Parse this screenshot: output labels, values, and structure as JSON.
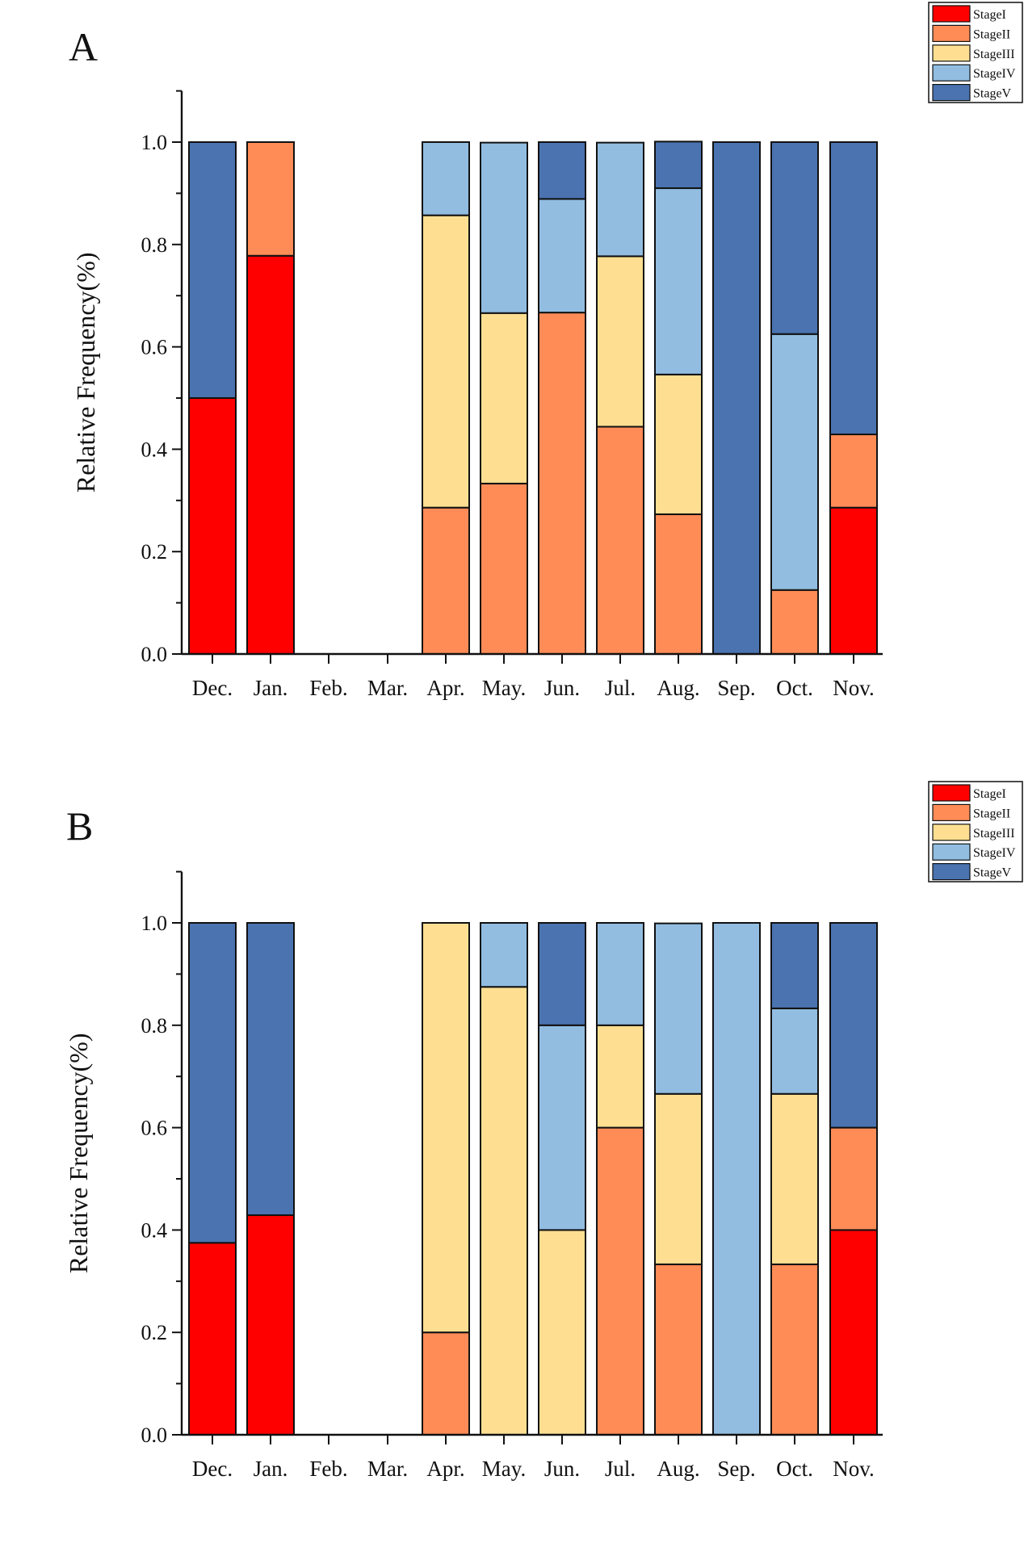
{
  "colors": {
    "StageI": "#FF0000",
    "StageII": "#FF8C57",
    "StageIII": "#FEDF92",
    "StageIV": "#92BDE1",
    "StageV": "#4A73B0"
  },
  "chart_data": [
    {
      "type": "bar",
      "stacked": true,
      "panel_label": "A",
      "ylabel": "Relative Frequency(%)",
      "ylim": [
        0,
        1.1
      ],
      "yticks": [
        "0.0",
        "0.2",
        "0.4",
        "0.6",
        "0.8",
        "1.0"
      ],
      "legend_position": "top-right",
      "categories": [
        "Dec.",
        "Jan.",
        "Feb.",
        "Mar.",
        "Apr.",
        "May.",
        "Jun.",
        "Jul.",
        "Aug.",
        "Sep.",
        "Oct.",
        "Nov."
      ],
      "series": [
        {
          "name": "StageI",
          "values": [
            0.5,
            0.778,
            0,
            0,
            0,
            0,
            0,
            0,
            0,
            0,
            0,
            0.286
          ]
        },
        {
          "name": "StageII",
          "values": [
            0,
            0.222,
            0,
            0,
            0.286,
            0.333,
            0.667,
            0.444,
            0.273,
            0,
            0.125,
            0.143
          ]
        },
        {
          "name": "StageIII",
          "values": [
            0,
            0,
            0,
            0,
            0.571,
            0.333,
            0,
            0.333,
            0.273,
            0,
            0,
            0
          ]
        },
        {
          "name": "StageIV",
          "values": [
            0,
            0,
            0,
            0,
            0.143,
            0.333,
            0.222,
            0.222,
            0.364,
            0,
            0.5,
            0
          ]
        },
        {
          "name": "StageV",
          "values": [
            0.5,
            0,
            0,
            0,
            0,
            0,
            0.111,
            0,
            0.091,
            1.0,
            0.375,
            0.571
          ]
        }
      ]
    },
    {
      "type": "bar",
      "stacked": true,
      "panel_label": "B",
      "ylabel": "Relative Frequency(%)",
      "ylim": [
        0,
        1.1
      ],
      "yticks": [
        "0.0",
        "0.2",
        "0.4",
        "0.6",
        "0.8",
        "1.0"
      ],
      "legend_position": "top-right",
      "categories": [
        "Dec.",
        "Jan.",
        "Feb.",
        "Mar.",
        "Apr.",
        "May.",
        "Jun.",
        "Jul.",
        "Aug.",
        "Sep.",
        "Oct.",
        "Nov."
      ],
      "series": [
        {
          "name": "StageI",
          "values": [
            0.375,
            0.429,
            0,
            0,
            0,
            0,
            0,
            0,
            0,
            0,
            0,
            0.4
          ]
        },
        {
          "name": "StageII",
          "values": [
            0,
            0,
            0,
            0,
            0.2,
            0,
            0,
            0.6,
            0.333,
            0,
            0.333,
            0.2
          ]
        },
        {
          "name": "StageIII",
          "values": [
            0,
            0,
            0,
            0,
            0.8,
            0.875,
            0.4,
            0.2,
            0.333,
            0,
            0.333,
            0
          ]
        },
        {
          "name": "StageIV",
          "values": [
            0,
            0,
            0,
            0,
            0,
            0.125,
            0.4,
            0.2,
            0.333,
            1.0,
            0.167,
            0
          ]
        },
        {
          "name": "StageV",
          "values": [
            0.625,
            0.571,
            0,
            0,
            0,
            0,
            0.2,
            0,
            0,
            0,
            0.167,
            0.4
          ]
        }
      ]
    }
  ]
}
